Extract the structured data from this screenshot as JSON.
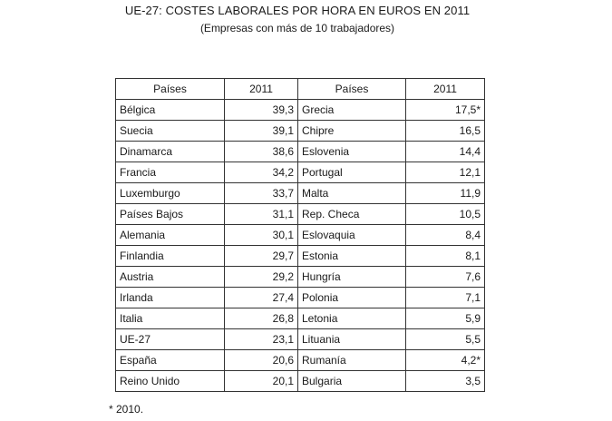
{
  "title": "UE-27: COSTES LABORALES POR HORA EN EUROS EN 2011",
  "subtitle": "(Empresas con más de 10 trabajadores)",
  "table": {
    "headers": [
      "Países",
      "2011",
      "Países",
      "2011"
    ],
    "rows": [
      {
        "left_country": "Bélgica",
        "left_value": "39,3",
        "right_country": "Grecia",
        "right_value": "17,5*"
      },
      {
        "left_country": "Suecia",
        "left_value": "39,1",
        "right_country": "Chipre",
        "right_value": "16,5"
      },
      {
        "left_country": "Dinamarca",
        "left_value": "38,6",
        "right_country": "Eslovenia",
        "right_value": "14,4"
      },
      {
        "left_country": "Francia",
        "left_value": "34,2",
        "right_country": "Portugal",
        "right_value": "12,1"
      },
      {
        "left_country": "Luxemburgo",
        "left_value": "33,7",
        "right_country": "Malta",
        "right_value": "11,9"
      },
      {
        "left_country": "Países Bajos",
        "left_value": "31,1",
        "right_country": "Rep. Checa",
        "right_value": "10,5"
      },
      {
        "left_country": "Alemania",
        "left_value": "30,1",
        "right_country": "Eslovaquia",
        "right_value": "8,4"
      },
      {
        "left_country": "Finlandia",
        "left_value": "29,7",
        "right_country": "Estonia",
        "right_value": "8,1"
      },
      {
        "left_country": "Austria",
        "left_value": "29,2",
        "right_country": "Hungría",
        "right_value": "7,6"
      },
      {
        "left_country": "Irlanda",
        "left_value": "27,4",
        "right_country": "Polonia",
        "right_value": "7,1"
      },
      {
        "left_country": "Italia",
        "left_value": "26,8",
        "right_country": "Letonia",
        "right_value": "5,9"
      },
      {
        "left_country": "UE-27",
        "left_value": "23,1",
        "right_country": "Lituania",
        "right_value": "5,5"
      },
      {
        "left_country": "España",
        "left_value": "20,6",
        "right_country": "Rumanía",
        "right_value": "4,2*"
      },
      {
        "left_country": "Reino Unido",
        "left_value": "20,1",
        "right_country": "Bulgaria",
        "right_value": "3,5"
      }
    ]
  },
  "footnote": "* 2010."
}
